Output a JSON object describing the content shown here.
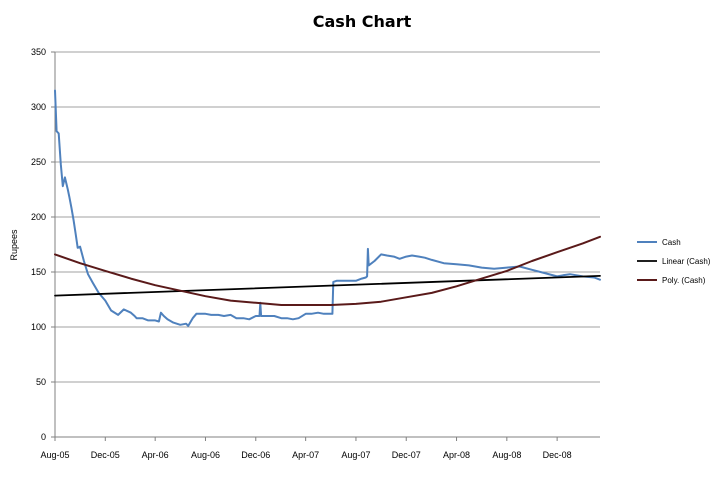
{
  "chart_data": {
    "type": "line",
    "title": "Cash Chart",
    "xlabel": "",
    "ylabel": "Rupees",
    "ylim": [
      0,
      350
    ],
    "yticks": [
      0,
      50,
      100,
      150,
      200,
      250,
      300,
      350
    ],
    "xlim": [
      "2005-08-01",
      "2009-03-15"
    ],
    "xticks": [
      "Aug-05",
      "Dec-05",
      "Apr-06",
      "Aug-06",
      "Dec-06",
      "Apr-07",
      "Aug-07",
      "Dec-07",
      "Apr-08",
      "Aug-08",
      "Dec-08"
    ],
    "grid": "horizontal",
    "legend_position": "right",
    "colors": {
      "cash": "#4f81bd",
      "linear": "#000000",
      "poly": "#5a1a1a",
      "grid": "#808080"
    },
    "series": [
      {
        "name": "Cash",
        "style": "data",
        "x": [
          "2005-08-01",
          "2005-08-05",
          "2005-08-10",
          "2005-08-15",
          "2005-08-20",
          "2005-08-25",
          "2005-09-01",
          "2005-09-05",
          "2005-09-10",
          "2005-09-15",
          "2005-09-20",
          "2005-09-25",
          "2005-10-01",
          "2005-10-10",
          "2005-10-20",
          "2005-11-01",
          "2005-11-15",
          "2005-12-01",
          "2005-12-15",
          "2006-01-01",
          "2006-01-15",
          "2006-02-01",
          "2006-02-10",
          "2006-02-15",
          "2006-03-01",
          "2006-03-15",
          "2006-04-01",
          "2006-04-10",
          "2006-04-15",
          "2006-04-22",
          "2006-05-01",
          "2006-05-15",
          "2006-06-01",
          "2006-06-15",
          "2006-06-20",
          "2006-07-01",
          "2006-07-10",
          "2006-08-01",
          "2006-08-15",
          "2006-09-01",
          "2006-09-15",
          "2006-10-01",
          "2006-10-15",
          "2006-11-01",
          "2006-11-15",
          "2006-12-01",
          "2006-12-10",
          "2006-12-12",
          "2006-12-14",
          "2007-01-01",
          "2007-01-15",
          "2007-02-01",
          "2007-02-15",
          "2007-03-01",
          "2007-03-15",
          "2007-04-01",
          "2007-04-15",
          "2007-05-01",
          "2007-05-15",
          "2007-06-01",
          "2007-06-05",
          "2007-06-07",
          "2007-06-15",
          "2007-07-01",
          "2007-07-15",
          "2007-08-01",
          "2007-08-15",
          "2007-08-25",
          "2007-08-28",
          "2007-08-30",
          "2007-09-01",
          "2007-09-15",
          "2007-10-01",
          "2007-10-15",
          "2007-11-01",
          "2007-11-15",
          "2007-12-01",
          "2007-12-15",
          "2008-01-01",
          "2008-01-15",
          "2008-02-01",
          "2008-03-01",
          "2008-04-01",
          "2008-05-01",
          "2008-06-01",
          "2008-07-01",
          "2008-08-01",
          "2008-09-01",
          "2008-10-01",
          "2008-11-01",
          "2008-12-01",
          "2008-12-15",
          "2009-01-01",
          "2009-02-01",
          "2009-03-01",
          "2009-03-15"
        ],
        "y": [
          315,
          278,
          276,
          248,
          228,
          236,
          225,
          218,
          208,
          197,
          185,
          172,
          173,
          160,
          148,
          140,
          131,
          124,
          115,
          111,
          116,
          113,
          110,
          108,
          108,
          106,
          106,
          105,
          113,
          110,
          107,
          104,
          102,
          103,
          101,
          108,
          112,
          112,
          111,
          111,
          110,
          111,
          108,
          108,
          107,
          110,
          110,
          122,
          110,
          110,
          110,
          108,
          108,
          107,
          108,
          112,
          112,
          113,
          112,
          112,
          112,
          141,
          142,
          142,
          142,
          142,
          144,
          145,
          146,
          171,
          156,
          160,
          166,
          165,
          164,
          162,
          164,
          165,
          164,
          163,
          161,
          158,
          157,
          156,
          154,
          153,
          154,
          155,
          152,
          149,
          146,
          147,
          148,
          146,
          145,
          143
        ]
      },
      {
        "name": "Linear (Cash)",
        "style": "trend",
        "x": [
          "2005-08-01",
          "2009-03-15"
        ],
        "y": [
          128.5,
          146.5
        ]
      },
      {
        "name": "Poly. (Cash)",
        "style": "trend",
        "x": [
          "2005-08-01",
          "2005-10-01",
          "2005-12-01",
          "2006-02-01",
          "2006-04-01",
          "2006-06-01",
          "2006-08-01",
          "2006-10-01",
          "2006-12-01",
          "2007-02-01",
          "2007-04-01",
          "2007-06-01",
          "2007-08-01",
          "2007-10-01",
          "2007-12-01",
          "2008-02-01",
          "2008-04-01",
          "2008-06-01",
          "2008-08-01",
          "2008-10-01",
          "2008-12-01",
          "2009-02-01",
          "2009-03-15"
        ],
        "y": [
          166,
          158,
          151,
          144,
          138,
          133,
          128,
          124,
          122,
          120,
          120,
          120,
          121,
          123,
          127,
          131,
          137,
          144,
          151,
          160,
          168,
          176,
          182
        ]
      }
    ]
  }
}
